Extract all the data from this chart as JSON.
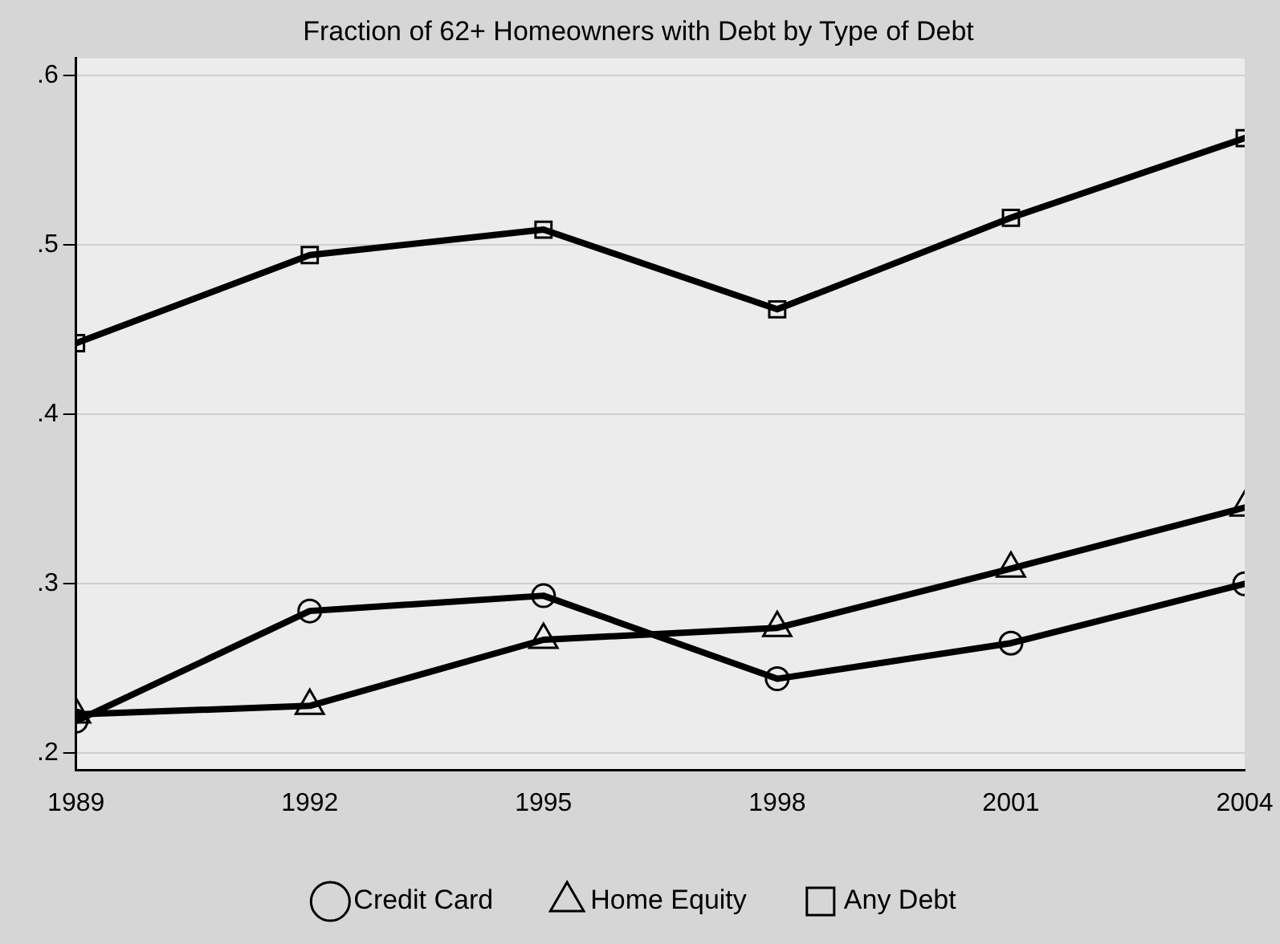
{
  "chart_data": {
    "type": "line",
    "title": "Fraction of 62+ Homeowners with Debt by Type of Debt",
    "x": [
      1989,
      1992,
      1995,
      1998,
      2001,
      2004
    ],
    "series": [
      {
        "name": "Credit Card",
        "color": "#000000",
        "marker": "circle",
        "values": [
          0.219,
          0.284,
          0.293,
          0.244,
          0.265,
          0.3
        ]
      },
      {
        "name": "Home Equity",
        "color": "#000000",
        "marker": "triangle",
        "values": [
          0.223,
          0.228,
          0.267,
          0.274,
          0.309,
          0.345
        ]
      },
      {
        "name": "Any Debt",
        "color": "#000000",
        "marker": "square",
        "values": [
          0.442,
          0.494,
          0.509,
          0.462,
          0.516,
          0.563
        ]
      }
    ],
    "xlim": [
      1989,
      2004
    ],
    "xticks": [
      1989,
      1992,
      1995,
      1998,
      2001,
      2004
    ],
    "ylim": [
      0.19,
      0.61
    ],
    "yticks": [
      {
        "value": 0.2,
        "label": ".2"
      },
      {
        "value": 0.3,
        "label": ".3"
      },
      {
        "value": 0.4,
        "label": ".4"
      },
      {
        "value": 0.5,
        "label": ".5"
      },
      {
        "value": 0.6,
        "label": ".6"
      }
    ],
    "grid": "y",
    "legend": "bottom",
    "line_style": "solid"
  }
}
